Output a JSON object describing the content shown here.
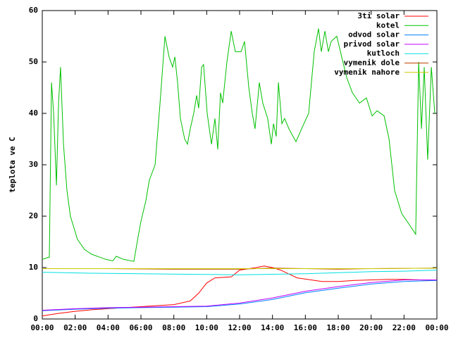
{
  "chart_data": {
    "type": "line",
    "y_label": "teplota ve C",
    "xlim": [
      0,
      24
    ],
    "xticks": [
      {
        "value": 0,
        "label": "00:00"
      },
      {
        "value": 2,
        "label": "02:00"
      },
      {
        "value": 4,
        "label": "04:00"
      },
      {
        "value": 6,
        "label": "06:00"
      },
      {
        "value": 8,
        "label": "08:00"
      },
      {
        "value": 10,
        "label": "10:00"
      },
      {
        "value": 12,
        "label": "12:00"
      },
      {
        "value": 14,
        "label": "14:00"
      },
      {
        "value": 16,
        "label": "16:00"
      },
      {
        "value": 18,
        "label": "18:00"
      },
      {
        "value": 20,
        "label": "20:00"
      },
      {
        "value": 22,
        "label": "22:00"
      },
      {
        "value": 24,
        "label": "00:00"
      }
    ],
    "ylim": [
      0,
      60
    ],
    "yticks": [
      0,
      10,
      20,
      30,
      40,
      50,
      60
    ],
    "grid": false,
    "legend": "top-right",
    "series": [
      {
        "name": "3ti solar",
        "color": "#ff0000",
        "x": [
          0,
          1,
          2,
          3,
          4,
          5,
          6,
          7,
          8,
          9,
          9.5,
          10,
          10.5,
          11.5,
          12,
          13,
          13.5,
          14,
          14.5,
          15.5,
          17,
          18,
          19,
          20,
          21,
          22,
          23,
          24
        ],
        "values": [
          0.6,
          1.1,
          1.5,
          1.8,
          2.0,
          2.2,
          2.4,
          2.6,
          2.8,
          3.5,
          5,
          7,
          8,
          8.2,
          9.5,
          10,
          10.3,
          10,
          9.5,
          8,
          7.3,
          7.3,
          7.5,
          7.6,
          7.7,
          7.7,
          7.6,
          7.5
        ]
      },
      {
        "name": "kotel",
        "color": "#00c000",
        "x": [
          0,
          0.2,
          0.35,
          0.43,
          0.56,
          0.69,
          0.86,
          0.99,
          1.11,
          1.29,
          1.5,
          1.71,
          2.14,
          2.57,
          3.0,
          3.43,
          3.86,
          4.29,
          4.5,
          4.93,
          5.57,
          5.83,
          6.0,
          6.3,
          6.51,
          6.86,
          7.16,
          7.46,
          7.71,
          7.93,
          8.06,
          8.23,
          8.4,
          8.66,
          8.83,
          9.0,
          9.21,
          9.39,
          9.51,
          9.69,
          9.81,
          10.03,
          10.29,
          10.5,
          10.67,
          10.84,
          10.97,
          11.23,
          11.49,
          11.74,
          12.09,
          12.3,
          12.56,
          12.77,
          12.94,
          13.2,
          13.41,
          13.71,
          13.93,
          14.06,
          14.23,
          14.36,
          14.57,
          14.74,
          15.0,
          15.43,
          15.77,
          16.2,
          16.54,
          16.8,
          16.97,
          17.19,
          17.4,
          17.57,
          17.91,
          18.21,
          18.51,
          18.86,
          19.29,
          19.71,
          20.06,
          20.36,
          20.79,
          21.09,
          21.43,
          21.86,
          22.29,
          22.71,
          22.89,
          23.06,
          23.23,
          23.44,
          23.66,
          23.87
        ],
        "values": [
          11.6,
          11.8,
          12,
          12,
          46,
          40,
          26,
          42,
          49,
          34,
          25,
          20,
          15.5,
          13.5,
          12.6,
          12.1,
          11.6,
          11.3,
          12.2,
          11.6,
          11.2,
          16,
          19,
          23,
          27,
          30,
          42,
          55,
          51,
          49,
          51,
          46,
          39,
          35,
          34,
          37,
          40,
          43.5,
          41,
          49,
          49.5,
          40,
          34,
          39,
          33,
          44,
          42,
          50,
          56,
          52,
          52,
          54,
          45,
          40,
          37,
          46,
          42,
          39,
          34,
          38,
          35.5,
          46,
          38,
          39,
          37,
          34.5,
          37,
          40,
          52,
          56.5,
          52,
          56,
          52,
          54,
          55,
          51,
          47,
          44,
          42,
          43,
          39.5,
          40.5,
          39.5,
          35,
          25,
          20.5,
          18.5,
          16.5,
          50,
          37,
          49,
          31,
          49,
          40
        ]
      },
      {
        "name": "odvod solar",
        "color": "#0080ff",
        "x": [
          0,
          2,
          4,
          6,
          8,
          10,
          12,
          14,
          16,
          18,
          20,
          22,
          24
        ],
        "values": [
          1.6,
          1.9,
          2.1,
          2.2,
          2.3,
          2.4,
          2.9,
          3.8,
          5.1,
          6.0,
          6.8,
          7.3,
          7.5
        ]
      },
      {
        "name": "privod solar",
        "color": "#c000ff",
        "x": [
          0,
          2,
          4,
          6,
          8,
          10,
          12,
          14,
          16,
          18,
          20,
          22,
          24
        ],
        "values": [
          1.7,
          2.0,
          2.2,
          2.3,
          2.4,
          2.5,
          3.1,
          4.1,
          5.4,
          6.3,
          7.1,
          7.6,
          7.6
        ]
      },
      {
        "name": "kutloch",
        "color": "#00e0e0",
        "x": [
          0,
          3,
          6,
          9,
          12,
          14,
          16,
          18,
          20,
          22,
          24
        ],
        "values": [
          9.1,
          8.9,
          8.8,
          8.7,
          8.6,
          8.7,
          8.8,
          9.0,
          9.2,
          9.3,
          9.5
        ]
      },
      {
        "name": "vymenik dole",
        "color": "#c04000",
        "x": [
          0,
          4,
          8,
          12,
          14,
          18,
          20,
          24
        ],
        "values": [
          9.8,
          9.8,
          9.7,
          9.7,
          9.9,
          9.7,
          9.8,
          9.9
        ]
      },
      {
        "name": "vymenik nahore",
        "color": "#c8c800",
        "x": [
          0,
          4,
          8,
          12,
          16,
          20,
          24
        ],
        "values": [
          9.8,
          9.8,
          9.8,
          9.8,
          9.8,
          9.8,
          9.9
        ]
      }
    ]
  }
}
